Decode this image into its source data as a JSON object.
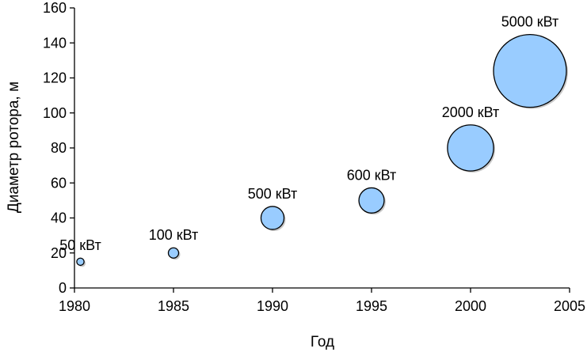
{
  "chart_data": {
    "type": "bubble",
    "title": "",
    "xlabel": "Год",
    "ylabel": "Диаметр ротора, м",
    "xlim": [
      1980,
      2005
    ],
    "ylim": [
      0,
      160
    ],
    "x_ticks": [
      "1980",
      "1985",
      "1990",
      "1995",
      "2000",
      "2005"
    ],
    "y_ticks": [
      "0",
      "20",
      "40",
      "60",
      "80",
      "100",
      "120",
      "140",
      "160"
    ],
    "grid": false,
    "legend": "none",
    "bubble_color": "#99ccff",
    "bubble_edge_color": "#000000",
    "points": [
      {
        "x": 1980.3,
        "y": 15,
        "size": 50,
        "label": "50 кВт"
      },
      {
        "x": 1985,
        "y": 20,
        "size": 100,
        "label": "100 кВт"
      },
      {
        "x": 1990,
        "y": 40,
        "size": 500,
        "label": "500 кВт"
      },
      {
        "x": 1995,
        "y": 50,
        "size": 600,
        "label": "600 кВт"
      },
      {
        "x": 2000,
        "y": 80,
        "size": 2000,
        "label": "2000 кВт"
      },
      {
        "x": 2003,
        "y": 124,
        "size": 5000,
        "label": "5000 кВт"
      }
    ]
  }
}
